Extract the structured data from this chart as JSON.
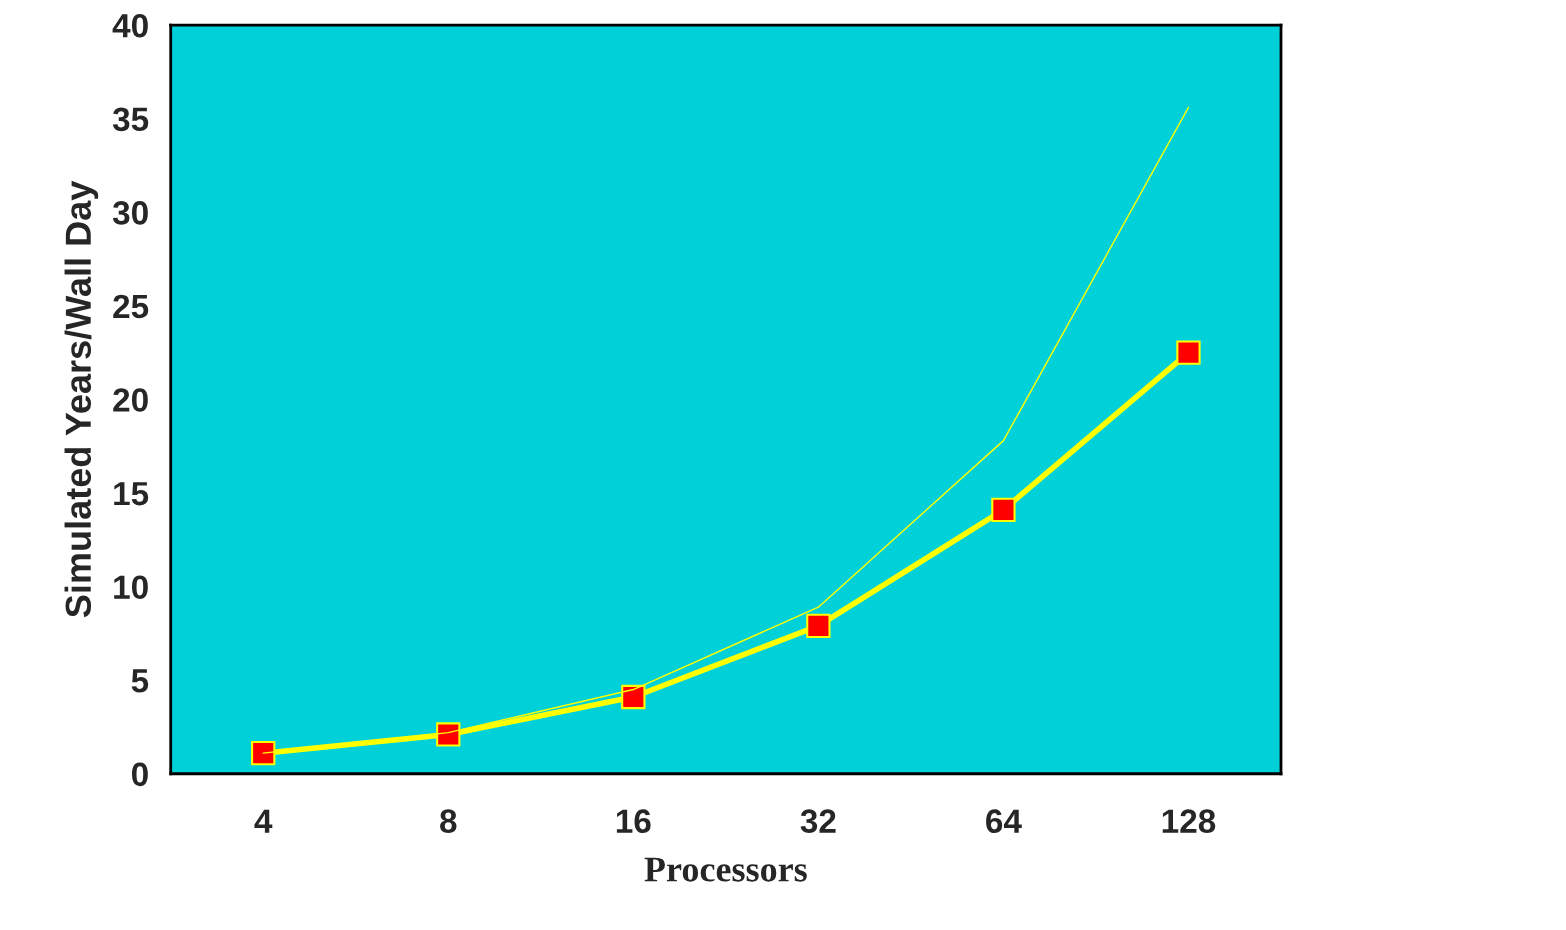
{
  "chart_data": {
    "type": "line",
    "xlabel": "Processors",
    "ylabel": "Simulated Years/Wall Day",
    "categories": [
      "4",
      "8",
      "16",
      "32",
      "64",
      "128"
    ],
    "series": [
      {
        "color": "#ffff00",
        "values": [
          1.1,
          2.2,
          4.5,
          8.9,
          17.8,
          35.6
        ],
        "marker": "none"
      },
      {
        "color": "#ffff00",
        "values": [
          1.1,
          2.1,
          4.1,
          7.9,
          14.1,
          22.5
        ],
        "marker": "square"
      }
    ],
    "ylim": [
      0,
      40
    ],
    "yticks": [
      0,
      5,
      10,
      15,
      20,
      25,
      30,
      35,
      40
    ],
    "grid": false,
    "legend": false
  }
}
